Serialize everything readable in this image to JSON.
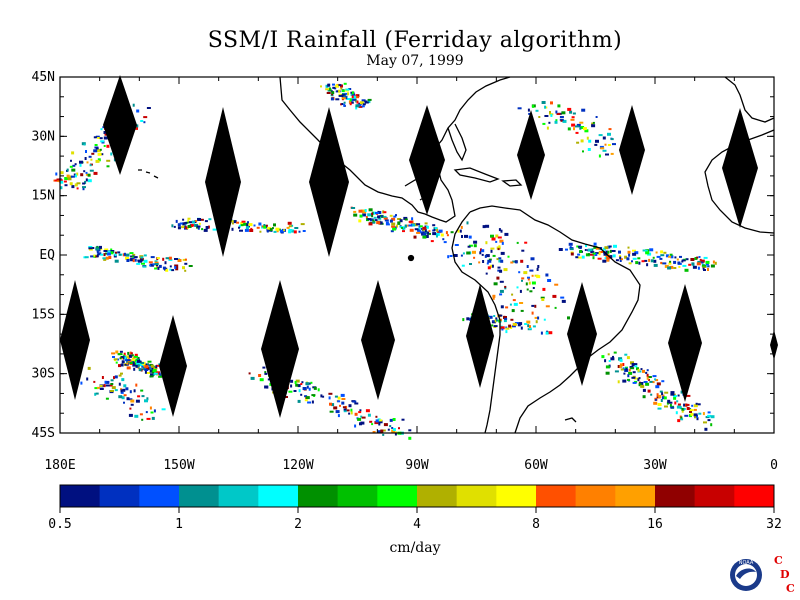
{
  "title": "SSM/I Rainfall (Ferriday algorithm)",
  "subtitle": "May 07, 1999",
  "map": {
    "lon_range": [
      -180,
      0
    ],
    "lat_range": [
      -45,
      45
    ],
    "lat_labels": [
      "45N",
      "30N",
      "15N",
      "EQ",
      "15S",
      "30S",
      "45S"
    ],
    "lat_values": [
      45,
      30,
      15,
      0,
      -15,
      -30,
      -45
    ],
    "lon_labels": [
      "180E",
      "150W",
      "120W",
      "90W",
      "60W",
      "30W",
      "0"
    ],
    "lon_values": [
      -180,
      -150,
      -120,
      -90,
      -60,
      -30,
      0
    ],
    "swath_gap_color": "#000000",
    "coastline_color": "#000000"
  },
  "colorbar": {
    "tick_labels": [
      "0.5",
      "1",
      "2",
      "4",
      "8",
      "16",
      "32"
    ],
    "colors": [
      "#001080",
      "#0030c0",
      "#0050ff",
      "#009090",
      "#00c8c8",
      "#00ffff",
      "#009000",
      "#00c000",
      "#00ff00",
      "#b0b000",
      "#e0e000",
      "#ffff00",
      "#ff5000",
      "#ff8000",
      "#ffa000",
      "#900000",
      "#c80000",
      "#ff0000"
    ],
    "units": "cm/day"
  },
  "logo": {
    "text": "NOAA",
    "letters": [
      "C",
      "D",
      "C"
    ],
    "letter_color": "#e00000"
  }
}
